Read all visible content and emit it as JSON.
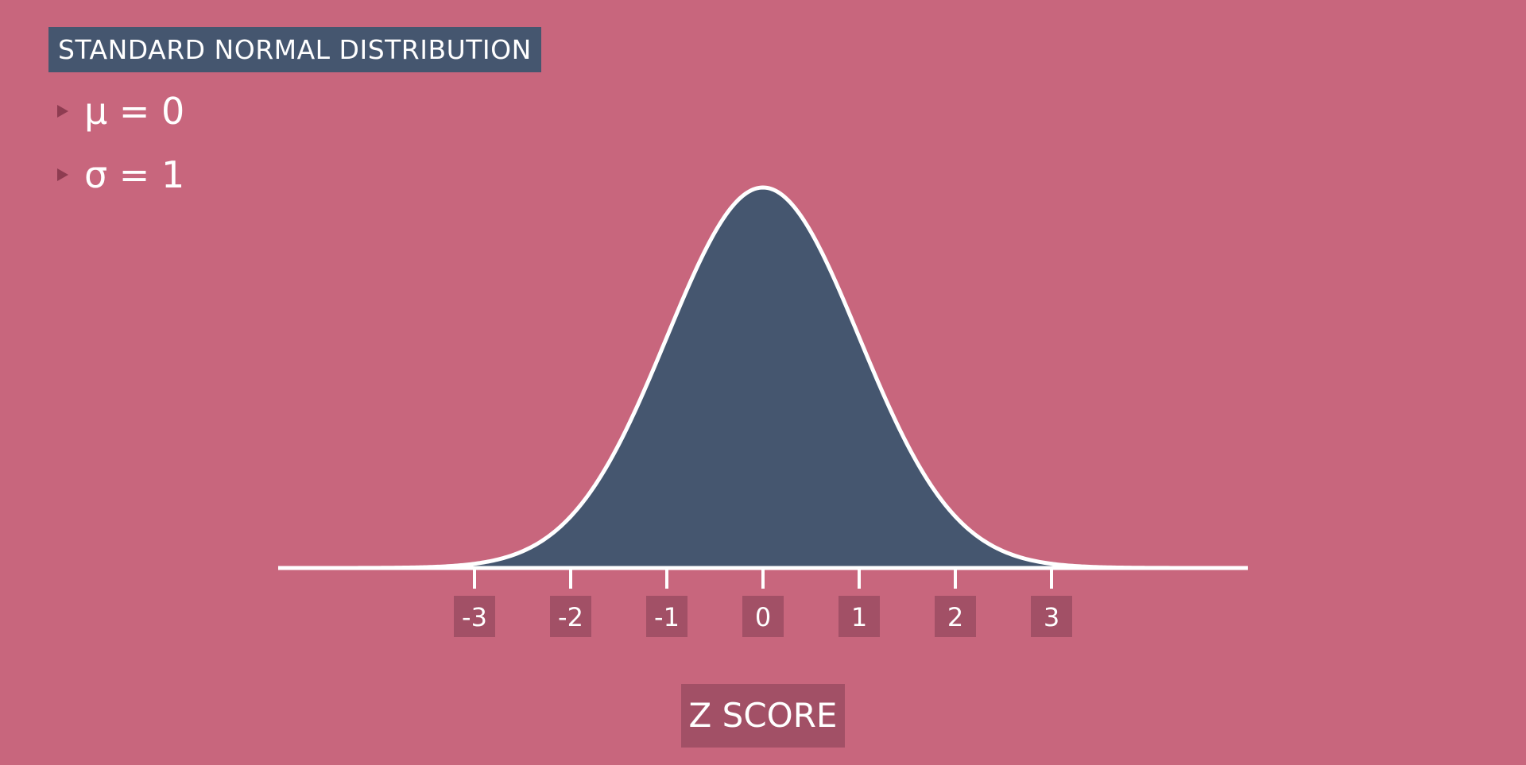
{
  "header": {
    "title": "STANDARD NORMAL DISTRIBUTION"
  },
  "params": {
    "mu": "μ = 0",
    "sigma": "σ = 1"
  },
  "colors": {
    "background": "#c8667d",
    "curve_fill": "#45566f",
    "curve_stroke": "#ffffff",
    "label_box": "#a25066",
    "bullet": "#8e3c51"
  },
  "chart_data": {
    "type": "area",
    "xlabel": "Z SCORE",
    "ylabel": "",
    "xlim": [
      -5,
      5
    ],
    "mean": 0,
    "std": 1,
    "ticks": [
      -3,
      -2,
      -1,
      0,
      1,
      2,
      3
    ],
    "tick_labels": [
      "-3",
      "-2",
      "-1",
      "0",
      "1",
      "2",
      "3"
    ],
    "grid": false
  }
}
